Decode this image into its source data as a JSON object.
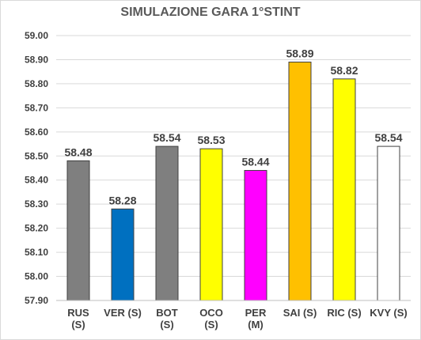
{
  "chart_data": {
    "type": "bar",
    "title": "SIMULAZIONE GARA 1°STINT",
    "xlabel": "",
    "ylabel": "",
    "ylim": [
      57.9,
      59.0
    ],
    "yticks": [
      "59.00",
      "58.90",
      "58.80",
      "58.70",
      "58.60",
      "58.50",
      "58.40",
      "58.30",
      "58.20",
      "58.10",
      "58.00",
      "57.90"
    ],
    "categories": [
      [
        "RUS",
        "(S)"
      ],
      [
        "VER (S)"
      ],
      [
        "BOT",
        "(S)"
      ],
      [
        "OCO",
        "(S)"
      ],
      [
        "PER",
        "(M)"
      ],
      [
        "SAI (S)"
      ],
      [
        "RIC (S)"
      ],
      [
        "KVY (S)"
      ]
    ],
    "values": [
      58.48,
      58.28,
      58.54,
      58.53,
      58.44,
      58.89,
      58.82,
      58.54
    ],
    "value_labels": [
      "58.48",
      "58.28",
      "58.54",
      "58.53",
      "58.44",
      "58.89",
      "58.82",
      "58.54"
    ],
    "colors": [
      "#7f7f7f",
      "#0070c0",
      "#7f7f7f",
      "#ffff00",
      "#ff00ff",
      "#ffc000",
      "#ffff00",
      "#ffffff"
    ],
    "grid": true,
    "legend": "none"
  }
}
